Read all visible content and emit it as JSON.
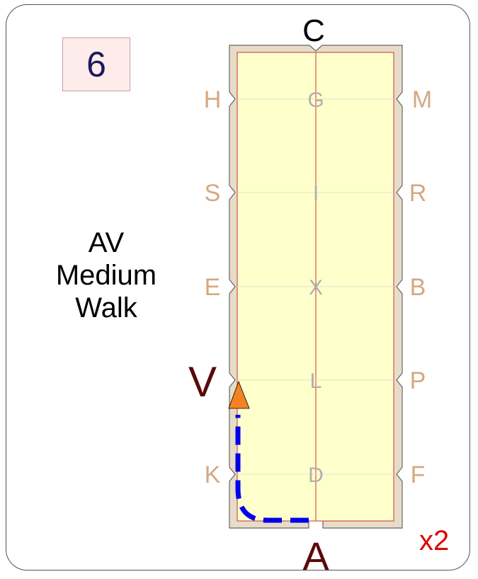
{
  "test_number": "6",
  "test_name": [
    "AV",
    "Medium",
    "Walk"
  ],
  "repeat": "x2",
  "markers": {
    "C": "C",
    "A": "A",
    "left": [
      "H",
      "S",
      "E",
      "V",
      "K"
    ],
    "right": [
      "M",
      "R",
      "B",
      "P",
      "F"
    ],
    "center": [
      "G",
      "I",
      "X",
      "L",
      "D"
    ]
  },
  "colors": {
    "arena_fill": "#ffffcc",
    "arena_border": "#e6dcc8",
    "inner_line": "#cc3333",
    "route": "#0000ee",
    "start_arrow": "#f58220",
    "marker_text": "#d4a882",
    "center_text": "#b0b0b0",
    "highlight_marker": "#5a0a0a"
  }
}
